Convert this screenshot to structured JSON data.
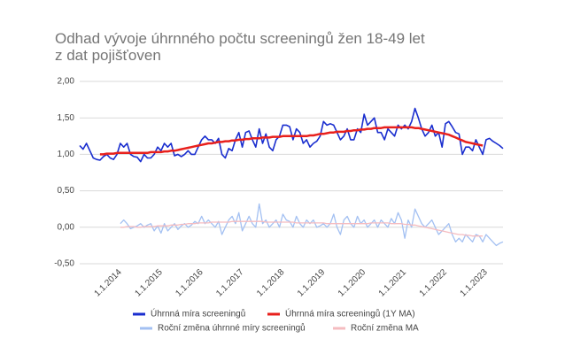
{
  "chart_data": {
    "type": "line",
    "title": "Odhad vývoje úhrnného počtu screeningů žen 18-49 let z dat pojišťoven",
    "categories": [
      null,
      null,
      null,
      null,
      null,
      null,
      null,
      null,
      null,
      null,
      null,
      null,
      "1.1.2014",
      null,
      null,
      null,
      null,
      null,
      null,
      null,
      null,
      null,
      null,
      null,
      "1.1.2015",
      null,
      null,
      null,
      null,
      null,
      null,
      null,
      null,
      null,
      null,
      null,
      "1.1.2016",
      null,
      null,
      null,
      null,
      null,
      null,
      null,
      null,
      null,
      null,
      null,
      "1.1.2017",
      null,
      null,
      null,
      null,
      null,
      null,
      null,
      null,
      null,
      null,
      null,
      "1.1.2018",
      null,
      null,
      null,
      null,
      null,
      null,
      null,
      null,
      null,
      null,
      null,
      "1.1.2019",
      null,
      null,
      null,
      null,
      null,
      null,
      null,
      null,
      null,
      null,
      null,
      "1.1.2020",
      null,
      null,
      null,
      null,
      null,
      null,
      null,
      null,
      null,
      null,
      null,
      "1.1.2021",
      null,
      null,
      null,
      null,
      null,
      null,
      null,
      null,
      null,
      null,
      null,
      "1.1.2022",
      null,
      null,
      null,
      null,
      null,
      null,
      null,
      null,
      null,
      null,
      null,
      "1.1.2023",
      null,
      null,
      null,
      null,
      null
    ],
    "series": [
      {
        "name": "Úhrnná míra screeningů",
        "color": "#1a2ecf",
        "values": [
          1.12,
          1.07,
          1.15,
          1.05,
          0.95,
          0.93,
          0.92,
          0.97,
          1.0,
          0.95,
          0.93,
          1.0,
          1.15,
          1.1,
          1.15,
          1.0,
          0.97,
          0.96,
          0.9,
          1.0,
          0.95,
          0.95,
          1.0,
          1.1,
          1.05,
          1.15,
          1.1,
          1.15,
          0.98,
          1.0,
          0.97,
          1.0,
          1.05,
          1.0,
          1.0,
          1.1,
          1.2,
          1.25,
          1.2,
          1.2,
          1.15,
          1.22,
          1.0,
          0.95,
          1.08,
          1.05,
          1.2,
          1.3,
          1.1,
          1.3,
          1.32,
          1.2,
          1.1,
          1.35,
          1.15,
          1.28,
          1.1,
          1.05,
          1.2,
          1.25,
          1.4,
          1.4,
          1.38,
          1.2,
          1.35,
          1.3,
          1.15,
          1.2,
          1.1,
          1.15,
          1.18,
          1.25,
          1.45,
          1.4,
          1.42,
          1.4,
          1.3,
          1.2,
          1.25,
          1.35,
          1.2,
          1.2,
          1.35,
          1.3,
          1.55,
          1.4,
          1.45,
          1.5,
          1.3,
          1.3,
          1.2,
          1.35,
          1.3,
          1.25,
          1.4,
          1.35,
          1.4,
          1.35,
          1.45,
          1.63,
          1.5,
          1.35,
          1.25,
          1.3,
          1.4,
          1.25,
          1.3,
          1.1,
          1.42,
          1.45,
          1.38,
          1.3,
          1.28,
          1.0,
          1.1,
          1.1,
          1.05,
          1.2,
          1.1,
          1.0,
          1.2,
          1.22,
          1.18,
          1.15,
          1.12,
          1.08
        ]
      },
      {
        "name": "Úhrnná míra screeningů (1Y MA)",
        "color": "#e8201c",
        "values": [
          null,
          null,
          null,
          null,
          null,
          null,
          1.0,
          1.0,
          1.01,
          1.01,
          1.01,
          1.02,
          1.02,
          1.02,
          1.02,
          1.02,
          1.02,
          1.02,
          1.02,
          1.02,
          1.02,
          1.03,
          1.03,
          1.03,
          1.03,
          1.04,
          1.04,
          1.05,
          1.05,
          1.06,
          1.07,
          1.08,
          1.09,
          1.1,
          1.11,
          1.12,
          1.13,
          1.14,
          1.15,
          1.15,
          1.16,
          1.17,
          1.17,
          1.18,
          1.18,
          1.19,
          1.19,
          1.2,
          1.2,
          1.21,
          1.21,
          1.22,
          1.22,
          1.22,
          1.23,
          1.23,
          1.23,
          1.24,
          1.24,
          1.24,
          1.25,
          1.25,
          1.25,
          1.25,
          1.25,
          1.25,
          1.25,
          1.25,
          1.26,
          1.26,
          1.27,
          1.28,
          1.28,
          1.29,
          1.3,
          1.3,
          1.31,
          1.31,
          1.31,
          1.32,
          1.32,
          1.33,
          1.33,
          1.34,
          1.34,
          1.35,
          1.35,
          1.36,
          1.36,
          1.36,
          1.37,
          1.37,
          1.37,
          1.37,
          1.37,
          1.37,
          1.37,
          1.37,
          1.37,
          1.36,
          1.36,
          1.35,
          1.34,
          1.33,
          1.32,
          1.31,
          1.3,
          1.29,
          1.28,
          1.27,
          1.25,
          1.23,
          1.21,
          1.19,
          1.17,
          1.16,
          1.15,
          1.14,
          1.13,
          1.12,
          null,
          null,
          null,
          null,
          null,
          null
        ]
      },
      {
        "name": "Roční změna úhrnné míry screeningů",
        "color": "#a3c0f2",
        "values": [
          null,
          null,
          null,
          null,
          null,
          null,
          null,
          null,
          null,
          null,
          null,
          null,
          0.05,
          0.1,
          0.05,
          -0.02,
          0.0,
          0.02,
          0.05,
          0.0,
          0.03,
          0.05,
          -0.05,
          0.02,
          -0.08,
          0.05,
          -0.05,
          0.0,
          0.05,
          -0.03,
          0.02,
          0.05,
          0.0,
          0.03,
          0.08,
          0.05,
          0.15,
          0.05,
          0.1,
          0.05,
          0.0,
          0.08,
          -0.1,
          0.0,
          0.1,
          0.15,
          0.05,
          0.2,
          -0.05,
          0.05,
          0.15,
          0.05,
          0.0,
          0.32,
          0.05,
          0.1,
          0.0,
          0.05,
          0.1,
          0.0,
          0.18,
          0.1,
          0.08,
          0.0,
          0.15,
          0.05,
          0.0,
          0.1,
          0.05,
          0.1,
          0.0,
          0.02,
          0.05,
          0.0,
          0.05,
          0.18,
          0.0,
          -0.1,
          0.1,
          0.15,
          0.05,
          0.0,
          0.15,
          0.05,
          0.1,
          0.0,
          0.05,
          0.1,
          0.0,
          0.1,
          0.05,
          0.0,
          0.12,
          0.05,
          0.2,
          0.1,
          -0.15,
          0.1,
          0.0,
          0.25,
          0.15,
          0.05,
          0.0,
          0.05,
          0.1,
          0.0,
          -0.1,
          -0.05,
          0.0,
          0.05,
          -0.1,
          -0.2,
          -0.15,
          -0.2,
          -0.1,
          -0.15,
          -0.2,
          -0.1,
          -0.12,
          -0.2,
          -0.1,
          -0.15,
          -0.2,
          -0.25,
          -0.22,
          -0.2
        ]
      },
      {
        "name": "Roční změna MA",
        "color": "#f5bcc0",
        "values": [
          null,
          null,
          null,
          null,
          null,
          null,
          null,
          null,
          null,
          null,
          null,
          null,
          0.0,
          0.0,
          0.01,
          0.01,
          0.01,
          0.0,
          0.0,
          0.01,
          0.01,
          0.01,
          0.01,
          0.02,
          0.02,
          0.02,
          0.02,
          0.03,
          0.03,
          0.03,
          0.04,
          0.04,
          0.05,
          0.05,
          0.05,
          0.06,
          0.06,
          0.06,
          0.06,
          0.07,
          0.07,
          0.07,
          0.07,
          0.07,
          0.07,
          0.08,
          0.08,
          0.08,
          0.08,
          0.08,
          0.08,
          0.08,
          0.08,
          0.08,
          0.08,
          0.07,
          0.07,
          0.07,
          0.07,
          0.07,
          0.07,
          0.07,
          0.07,
          0.07,
          0.06,
          0.06,
          0.06,
          0.06,
          0.06,
          0.06,
          0.06,
          0.06,
          0.06,
          0.05,
          0.05,
          0.05,
          0.05,
          0.05,
          0.05,
          0.05,
          0.05,
          0.05,
          0.05,
          0.05,
          0.05,
          0.05,
          0.06,
          0.06,
          0.06,
          0.06,
          0.06,
          0.06,
          0.05,
          0.05,
          0.05,
          0.05,
          0.04,
          0.04,
          0.03,
          0.03,
          0.02,
          0.01,
          0.0,
          -0.01,
          -0.02,
          -0.03,
          -0.04,
          -0.05,
          -0.06,
          -0.07,
          -0.08,
          -0.09,
          -0.1,
          -0.1,
          -0.11,
          -0.11,
          -0.12,
          -0.12,
          -0.12,
          -0.12,
          null,
          null,
          null,
          null,
          null,
          null
        ]
      }
    ],
    "ylim": [
      -0.5,
      2
    ],
    "yticks": [
      {
        "value": -0.5,
        "label": "-0,50"
      },
      {
        "value": 0,
        "label": "0,00"
      },
      {
        "value": 0.5,
        "label": "0,50"
      },
      {
        "value": 1,
        "label": "1,00"
      },
      {
        "value": 1.5,
        "label": "1,50"
      },
      {
        "value": 2,
        "label": "2,00"
      }
    ],
    "grid": true
  }
}
